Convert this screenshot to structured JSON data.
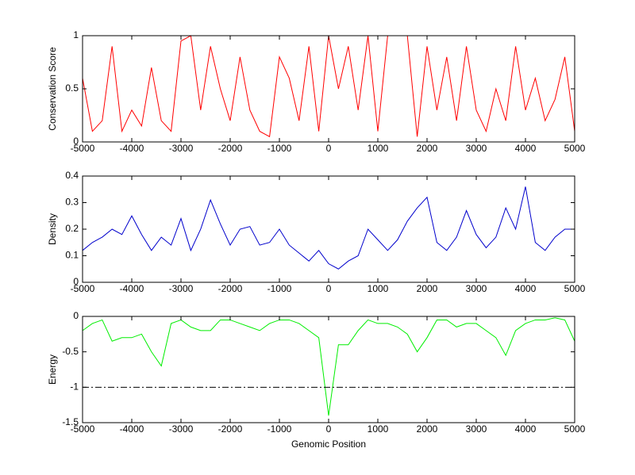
{
  "chart_data": [
    {
      "type": "line",
      "ylabel": "Conservation Score",
      "x": [
        -5000,
        -4800,
        -4600,
        -4400,
        -4200,
        -4000,
        -3800,
        -3600,
        -3400,
        -3200,
        -3000,
        -2800,
        -2600,
        -2400,
        -2200,
        -2000,
        -1800,
        -1600,
        -1400,
        -1200,
        -1000,
        -800,
        -600,
        -400,
        -200,
        0,
        200,
        400,
        600,
        800,
        1000,
        1200,
        1400,
        1600,
        1800,
        2000,
        2200,
        2400,
        2600,
        2800,
        3000,
        3200,
        3400,
        3600,
        3800,
        4000,
        4200,
        4400,
        4600,
        4800,
        5000
      ],
      "series": [
        {
          "color": "#ff0000",
          "values": [
            0.6,
            0.1,
            0.2,
            0.9,
            0.1,
            0.3,
            0.15,
            0.7,
            0.2,
            0.1,
            0.95,
            1.0,
            0.3,
            0.9,
            0.5,
            0.2,
            0.8,
            0.3,
            0.1,
            0.05,
            0.8,
            0.6,
            0.2,
            0.9,
            0.1,
            1.0,
            0.5,
            0.9,
            0.3,
            1.0,
            0.1,
            1.0,
            1.0,
            1.0,
            0.05,
            0.9,
            0.3,
            0.8,
            0.2,
            0.9,
            0.3,
            0.1,
            0.5,
            0.2,
            0.9,
            0.3,
            0.6,
            0.2,
            0.4,
            0.8,
            0.1
          ]
        }
      ],
      "xlim": [
        -5000,
        5000
      ],
      "xticks": [
        -5000,
        -4000,
        -3000,
        -2000,
        -1000,
        0,
        1000,
        2000,
        3000,
        4000,
        5000
      ],
      "ylim": [
        0,
        1
      ],
      "yticks": [
        0,
        0.5,
        1
      ]
    },
    {
      "type": "line",
      "ylabel": "Density",
      "x": [
        -5000,
        -4800,
        -4600,
        -4400,
        -4200,
        -4000,
        -3800,
        -3600,
        -3400,
        -3200,
        -3000,
        -2800,
        -2600,
        -2400,
        -2200,
        -2000,
        -1800,
        -1600,
        -1400,
        -1200,
        -1000,
        -800,
        -600,
        -400,
        -200,
        0,
        200,
        400,
        600,
        800,
        1000,
        1200,
        1400,
        1600,
        1800,
        2000,
        2200,
        2400,
        2600,
        2800,
        3000,
        3200,
        3400,
        3600,
        3800,
        4000,
        4200,
        4400,
        4600,
        4800,
        5000
      ],
      "series": [
        {
          "color": "#0000cc",
          "values": [
            0.12,
            0.15,
            0.17,
            0.2,
            0.18,
            0.25,
            0.18,
            0.12,
            0.17,
            0.14,
            0.24,
            0.12,
            0.2,
            0.31,
            0.22,
            0.14,
            0.2,
            0.21,
            0.14,
            0.15,
            0.2,
            0.14,
            0.11,
            0.08,
            0.12,
            0.07,
            0.05,
            0.08,
            0.1,
            0.2,
            0.16,
            0.12,
            0.16,
            0.23,
            0.28,
            0.32,
            0.15,
            0.12,
            0.17,
            0.27,
            0.18,
            0.13,
            0.17,
            0.28,
            0.2,
            0.36,
            0.15,
            0.12,
            0.17,
            0.2,
            0.2
          ]
        }
      ],
      "xlim": [
        -5000,
        5000
      ],
      "xticks": [
        -5000,
        -4000,
        -3000,
        -2000,
        -1000,
        0,
        1000,
        2000,
        3000,
        4000,
        5000
      ],
      "ylim": [
        0,
        0.4
      ],
      "yticks": [
        0,
        0.1,
        0.2,
        0.3,
        0.4
      ]
    },
    {
      "type": "line",
      "ylabel": "Energy",
      "xlabel": "Genomic Position",
      "x": [
        -5000,
        -4800,
        -4600,
        -4400,
        -4200,
        -4000,
        -3800,
        -3600,
        -3400,
        -3200,
        -3000,
        -2800,
        -2600,
        -2400,
        -2200,
        -2000,
        -1800,
        -1600,
        -1400,
        -1200,
        -1000,
        -800,
        -600,
        -400,
        -200,
        0,
        200,
        400,
        600,
        800,
        1000,
        1200,
        1400,
        1600,
        1800,
        2000,
        2200,
        2400,
        2600,
        2800,
        3000,
        3200,
        3400,
        3600,
        3800,
        4000,
        4200,
        4400,
        4600,
        4800,
        5000
      ],
      "series": [
        {
          "color": "#00ee00",
          "values": [
            -0.2,
            -0.1,
            -0.05,
            -0.35,
            -0.3,
            -0.3,
            -0.25,
            -0.5,
            -0.7,
            -0.1,
            -0.05,
            -0.15,
            -0.2,
            -0.2,
            -0.05,
            -0.05,
            -0.1,
            -0.15,
            -0.2,
            -0.1,
            -0.05,
            -0.05,
            -0.1,
            -0.2,
            -0.3,
            -1.4,
            -0.4,
            -0.4,
            -0.2,
            -0.05,
            -0.1,
            -0.1,
            -0.15,
            -0.25,
            -0.5,
            -0.3,
            -0.05,
            -0.05,
            -0.15,
            -0.1,
            -0.1,
            -0.2,
            -0.3,
            -0.55,
            -0.2,
            -0.1,
            -0.05,
            -0.05,
            -0.02,
            -0.05,
            -0.35
          ]
        }
      ],
      "hline": -1,
      "xlim": [
        -5000,
        5000
      ],
      "xticks": [
        -5000,
        -4000,
        -3000,
        -2000,
        -1000,
        0,
        1000,
        2000,
        3000,
        4000,
        5000
      ],
      "ylim": [
        -1.5,
        0
      ],
      "yticks": [
        -1.5,
        -1,
        -0.5,
        0
      ]
    }
  ]
}
